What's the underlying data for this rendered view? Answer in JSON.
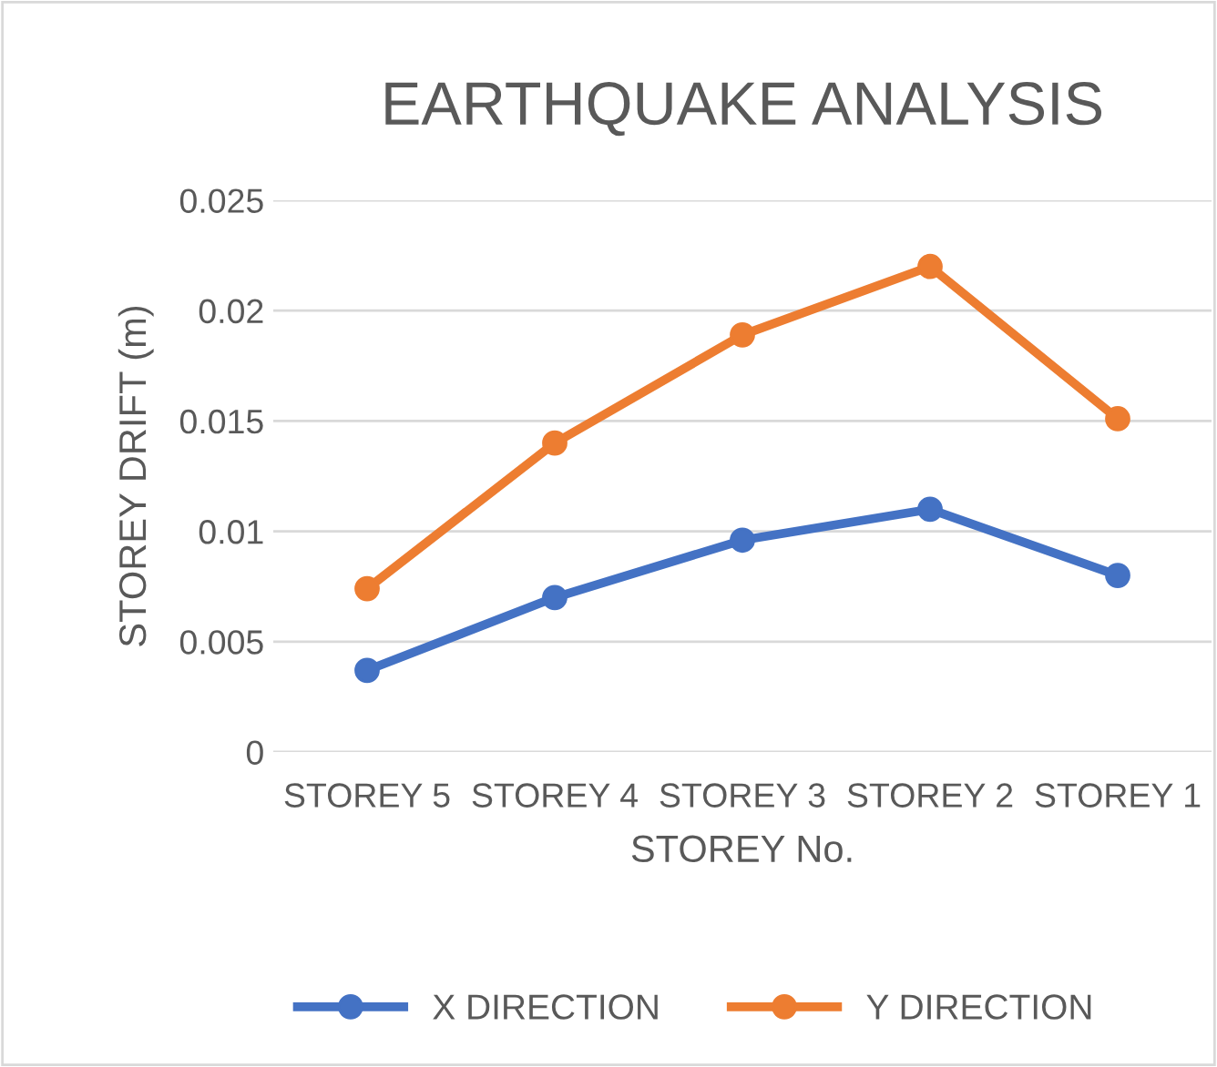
{
  "chart_data": {
    "type": "line",
    "title": "EARTHQUAKE ANALYSIS",
    "xlabel": "STOREY No.",
    "ylabel": "STOREY DRIFT (m)",
    "categories": [
      "STOREY 5",
      "STOREY 4",
      "STOREY 3",
      "STOREY 2",
      "STOREY 1"
    ],
    "series": [
      {
        "name": "X DIRECTION",
        "color": "#4472c4",
        "values": [
          0.0037,
          0.007,
          0.0096,
          0.011,
          0.008
        ]
      },
      {
        "name": "Y DIRECTION",
        "color": "#ed7d31",
        "values": [
          0.0074,
          0.014,
          0.0189,
          0.022,
          0.0151
        ]
      }
    ],
    "ylim": [
      0,
      0.025
    ],
    "yticks": [
      0,
      0.005,
      0.01,
      0.015,
      0.02,
      0.025
    ],
    "grid": "y",
    "legend": "bottom",
    "marker": "circle",
    "line_style": "solid"
  }
}
